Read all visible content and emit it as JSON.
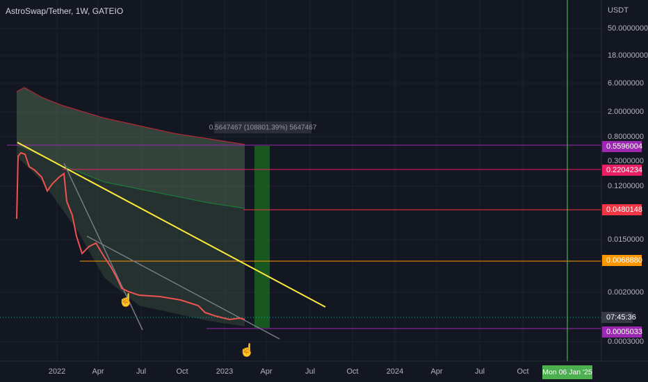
{
  "header": {
    "title": "AstroSwap/Tether, 1W, GATEIO"
  },
  "price_axis": {
    "unit": "USDT",
    "labels": [
      "50.0000000",
      "18.0000000",
      "6.0000000",
      "2.0000000",
      "0.8000000",
      "0.3000000",
      "0.1200000",
      "0.0150000",
      "0.0020000",
      "0.0003000"
    ]
  },
  "price_tags": [
    "0.5596004",
    "0.2204234",
    "0.0480148",
    "0.0068880",
    "0.0005033"
  ],
  "countdown": "07:45:36",
  "measure_label": "0.5647467 (108801.39%) 5647467",
  "time_axis": {
    "labels": [
      "2022",
      "Apr",
      "Jul",
      "Oct",
      "2023",
      "Apr",
      "Jul",
      "Oct",
      "2024",
      "Apr",
      "Jul",
      "Oct"
    ]
  },
  "date_marker": "Mon 06 Jan '25"
}
